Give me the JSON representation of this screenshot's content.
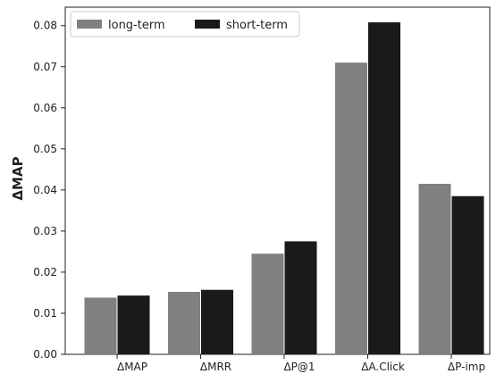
{
  "chart_data": {
    "type": "bar",
    "title": "",
    "xlabel": "",
    "ylabel": "ΔMAP",
    "categories": [
      "ΔMAP",
      "ΔMRR",
      "ΔP@1",
      "ΔA.Click",
      "ΔP-imp"
    ],
    "series": [
      {
        "name": "long-term",
        "color": "#808080",
        "values": [
          0.0138,
          0.0152,
          0.0245,
          0.071,
          0.0415
        ]
      },
      {
        "name": "short-term",
        "color": "#1a1a1a",
        "values": [
          0.0143,
          0.0157,
          0.0275,
          0.0808,
          0.0385
        ]
      }
    ],
    "ylim": [
      0,
      0.0845
    ],
    "yticks": [
      "0.00",
      "0.01",
      "0.02",
      "0.03",
      "0.04",
      "0.05",
      "0.06",
      "0.07",
      "0.08"
    ],
    "grid": false,
    "legend_position": "top-left"
  }
}
